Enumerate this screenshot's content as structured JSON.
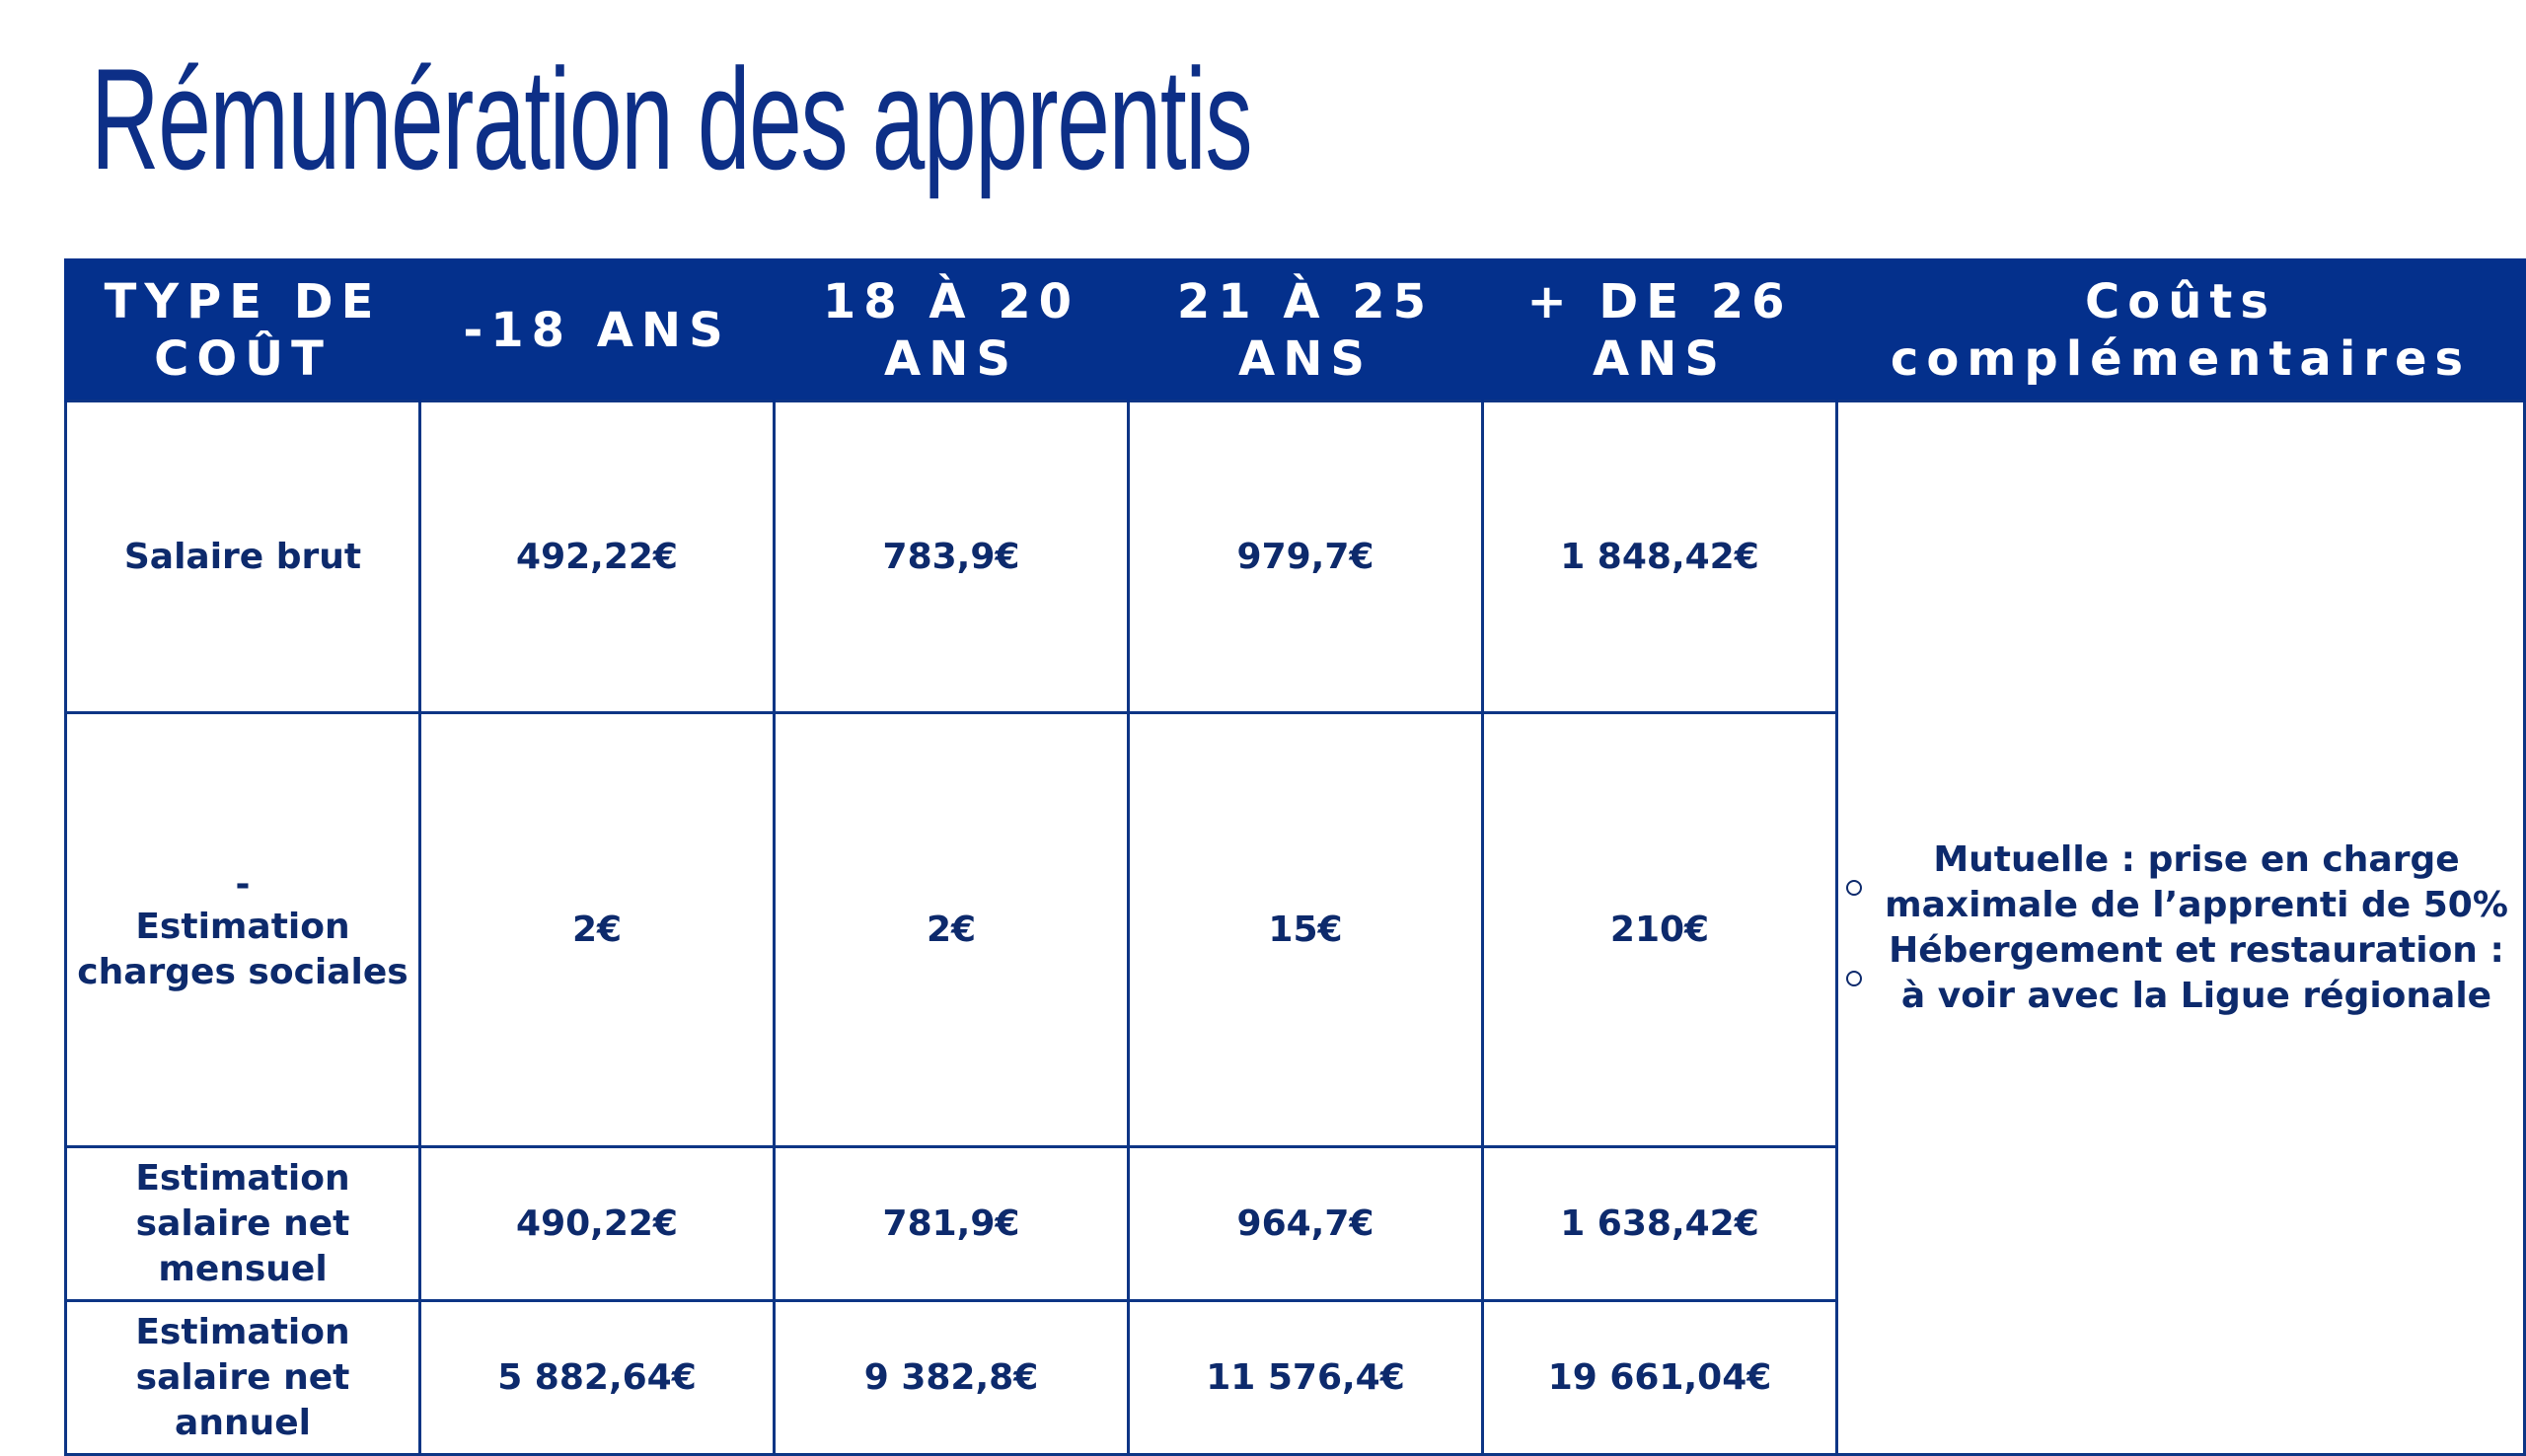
{
  "title": "Rémunération des apprentis",
  "colors": {
    "brand_blue": "#04308c",
    "text_blue": "#0d2a6c",
    "accent_red": "#d90e36"
  },
  "table": {
    "headers": [
      "TYPE DE COÛT",
      "-18 ANS",
      "18 À 20 ANS",
      "21 À 25 ANS",
      "+ DE 26 ANS",
      "Coûts complémentaires"
    ],
    "rows": [
      {
        "label": "Salaire brut",
        "values": [
          "492,22€",
          "783,9€",
          "979,7€",
          "1 848,42€"
        ],
        "style": "blue"
      },
      {
        "label_prefix": "-",
        "label": "Estimation charges sociales",
        "values": [
          "2€",
          "2€",
          "15€",
          "210€"
        ],
        "style": "blue"
      },
      {
        "label": "Estimation salaire net mensuel",
        "values": [
          "490,22€",
          "781,9€",
          "964,7€",
          "1 638,42€"
        ],
        "style": "red"
      },
      {
        "label": "Estimation salaire net annuel",
        "values": [
          "5 882,64€",
          "9 382,8€",
          "11 576,4€",
          "19 661,04€"
        ],
        "style": "red"
      }
    ],
    "complementary": [
      {
        "bold": "Mutuelle :",
        "text": " prise en charge maximale de l’apprenti de 50%"
      },
      {
        "bold": "Hébergement et restauration :",
        "text": " à voir avec la Ligue régionale"
      }
    ]
  }
}
